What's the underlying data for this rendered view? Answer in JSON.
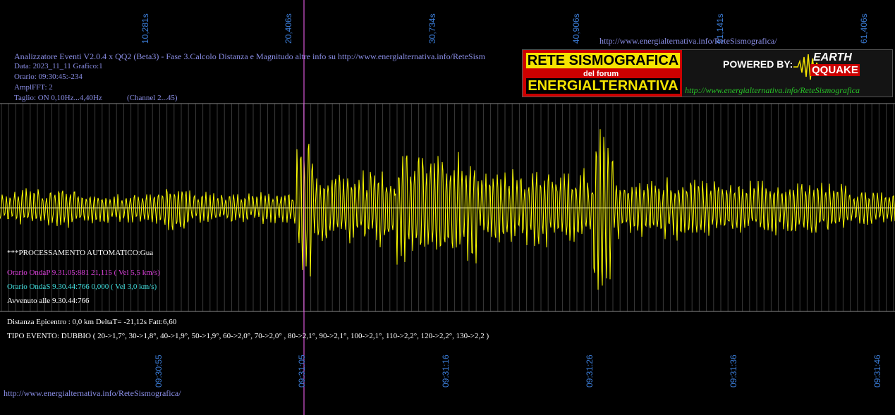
{
  "header": {
    "url_top": "http://www.energialternativa.info/ReteSismografica/",
    "line1": "Analizzatore Eventi V2.0.4 x QQ2 (Beta3) - Fase 3.Calcolo Distanza e Magnitudo altre info su http://www.energialternativa.info/ReteSism",
    "line2": "Data: 2023_11_11 Grafico:1",
    "line3": "Orario: 09:30:45:-234",
    "line4": "AmplFFT: 2",
    "line5": "Taglio: ON 0,10Hz...4,40Hz",
    "channel": "(Channel 2...45)"
  },
  "banner": {
    "title_top": "RETE SISMOGRAFICA",
    "subtitle": "del forum",
    "title_bottom": "ENERGIALTERNATIVA",
    "powered_by": "POWERED BY:",
    "earth": "EARTH",
    "quake": "QQUAKE",
    "url": "http://www.energialternativa.info/ReteSismografica",
    "colors": {
      "yellow": "#f5e400",
      "red": "#cc0000",
      "green": "#27c427",
      "blue": "#7a8cff"
    }
  },
  "top_axis_labels": [
    "10,281s",
    "20,406s",
    "30,734s",
    "40,906s",
    "51,141s",
    "61,406s"
  ],
  "bottom_axis_labels": [
    "09:30:55",
    "09:31:05",
    "09:31:16",
    "09:31:26",
    "09:31:36",
    "09:31:46"
  ],
  "analysis": {
    "mode": "***PROCESSAMENTO AUTOMATICO:Gua",
    "onda_p": "Orario OndaP 9.31.05:881  21,115 ( Vel 5,5 km/s)",
    "onda_s": "Orario OndaS 9.30.44:766  0,000 ( Vel 3,0 km/s)",
    "avvenuto": "Avvenuto alle 9.30.44:766",
    "distanza": "Distanza Epicentro : 0,0 km DeltaT= -21,12s  Fatt:6,60",
    "tipo": "TIPO EVENTO: DUBBIO ( 20->1,7°, 30->1,8°, 40->1,9°, 50->1,9°, 60->2,0°, 70->2,0° , 80->2,1°, 90->2,1°, 100->2,1°, 110->2,2°, 120->2,2°, 130->2,2 )"
  },
  "footer_url": "http://www.energialternativa.info/ReteSismografica/",
  "colors": {
    "trace": "#ffff00",
    "p_marker": "#ff66ff",
    "onda_p_text": "#e040e0",
    "onda_s_text": "#40e0e0",
    "axis_label": "#3a7bd5",
    "info_text": "#8a8ee6"
  }
}
